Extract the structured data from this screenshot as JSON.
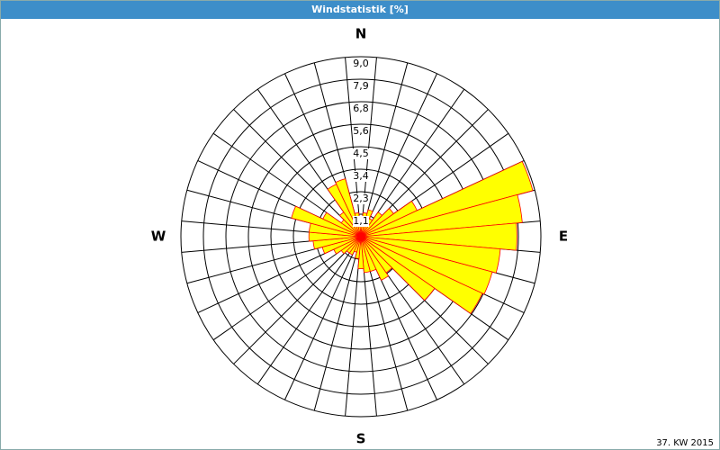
{
  "chart_data": {
    "type": "windrose",
    "title": "Windstatistik [%]",
    "footnote": "37. KW 2015",
    "categories": [
      "N",
      null,
      null,
      null,
      null,
      null,
      null,
      null,
      null,
      "E",
      null,
      null,
      null,
      null,
      null,
      null,
      null,
      null,
      "S",
      null,
      null,
      null,
      null,
      null,
      null,
      null,
      null,
      "W",
      null,
      null,
      null,
      null,
      null,
      null,
      null,
      null
    ],
    "values": [
      1.0,
      1.2,
      1.4,
      1.0,
      1.5,
      2.0,
      3.1,
      8.9,
      8.1,
      7.8,
      7.0,
      6.8,
      6.7,
      4.5,
      2.2,
      2.4,
      1.8,
      1.8,
      1.6,
      1.1,
      0.8,
      1.0,
      1.0,
      1.2,
      1.5,
      2.0,
      2.4,
      2.6,
      2.6,
      3.6,
      2.1,
      1.2,
      1.5,
      2.9,
      3.0,
      1.2
    ],
    "color": "#ffff00",
    "edge_color": "#ff0000",
    "rlim": [
      0,
      9
    ],
    "rticks": [
      {
        "value": 1.125,
        "label": "1,1"
      },
      {
        "value": 2.25,
        "label": "2,3"
      },
      {
        "value": 3.375,
        "label": "3,4"
      },
      {
        "value": 4.5,
        "label": "4,5"
      },
      {
        "value": 5.625,
        "label": "5,6"
      },
      {
        "value": 6.75,
        "label": "6,8"
      },
      {
        "value": 7.875,
        "label": "7,9"
      },
      {
        "value": 9,
        "label": "9,0"
      }
    ],
    "grid": true
  }
}
